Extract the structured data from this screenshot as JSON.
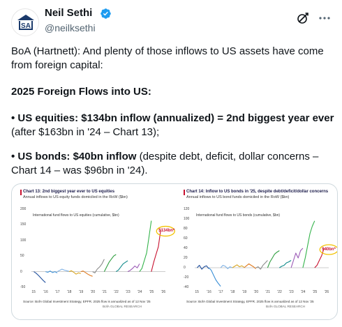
{
  "author": {
    "name": "Neil Sethi",
    "handle": "@neilksethi",
    "avatar_initials": "SA"
  },
  "icons": {
    "verified": "verified-badge-icon",
    "grok": "grok-icon",
    "more": "more-options-icon"
  },
  "colors": {
    "verified": "#1d9bf0",
    "text": "#0f1419",
    "secondary": "#536471",
    "chart_title": "#1b1b4a",
    "callout_circle": "#f2c200",
    "callout_text": "#c8102e"
  },
  "tweet": {
    "line1": "BoA (Hartnett): And plenty of those inflows to US assets have come from foreign capital:",
    "heading": "2025 Foreign Flows into US:",
    "equities_bold": "• US equities: $134bn inflow (annualized) = 2nd biggest year ever",
    "equities_rest": "(after $163bn in '24  – Chart 13);",
    "bonds_bold": "• US bonds: $40bn inflow",
    "bonds_rest": " (despite debt, deficit, dollar concerns – Chart 14 – was  $96bn in '24)."
  },
  "chart_data": [
    {
      "type": "line",
      "title": "Chart 13: 2nd biggest year ever to US equities",
      "subtitle": "Annual inflows to US equity funds domiciled in the RoW ($bn)",
      "inner_title": "International fund flows to US equities (cumulative, $bn)",
      "callout": "$134bn*",
      "source": "Source: BofA Global Investment Strategy, EPFR. 2025 flow is annualized as of 12 Nov '25",
      "brand": "BofA GLOBAL RESEARCH",
      "ylim": [
        -50,
        200
      ],
      "y_ticks": [
        "200",
        "150",
        "100",
        "50",
        "0",
        "-50"
      ],
      "x_ticks": [
        "15",
        "'16",
        "'17",
        "'18",
        "'19",
        "'20",
        "'21",
        "'22",
        "'23",
        "'24",
        "'25",
        "'26"
      ],
      "series": [
        {
          "color": "#1f4e9c",
          "x": [
            2015.0,
            2015.2,
            2015.4,
            2015.6,
            2015.8,
            2016.0
          ],
          "y": [
            0,
            -5,
            -12,
            -20,
            -28,
            -35
          ]
        },
        {
          "color": "#3a8fd6",
          "x": [
            2016.0,
            2016.2,
            2016.4,
            2016.6,
            2016.8,
            2017.0
          ],
          "y": [
            0,
            -2,
            2,
            -3,
            0,
            -4
          ]
        },
        {
          "color": "#7fb2e5",
          "x": [
            2017.0,
            2017.2,
            2017.4,
            2017.6,
            2017.8,
            2018.0
          ],
          "y": [
            0,
            4,
            8,
            5,
            3,
            1
          ]
        },
        {
          "color": "#d9a520",
          "x": [
            2018.0,
            2018.2,
            2018.4,
            2018.6,
            2018.8,
            2019.0
          ],
          "y": [
            0,
            3,
            -2,
            -8,
            -4,
            -6
          ]
        },
        {
          "color": "#e07a1e",
          "x": [
            2019.0,
            2019.2,
            2019.4,
            2019.6,
            2019.8,
            2020.0
          ],
          "y": [
            0,
            2,
            -3,
            -8,
            -12,
            -15
          ]
        },
        {
          "color": "#8a8a8a",
          "x": [
            2020.0,
            2020.2,
            2020.4,
            2020.6,
            2020.8,
            2021.0
          ],
          "y": [
            0,
            -4,
            8,
            15,
            25,
            40
          ]
        },
        {
          "color": "#2e9e3e",
          "x": [
            2021.0,
            2021.2,
            2021.4,
            2021.6,
            2021.8,
            2022.0
          ],
          "y": [
            0,
            15,
            30,
            40,
            50,
            55
          ]
        },
        {
          "color": "#0f8a8a",
          "x": [
            2022.0,
            2022.2,
            2022.4,
            2022.6,
            2022.8,
            2023.0
          ],
          "y": [
            0,
            5,
            15,
            25,
            30,
            35
          ]
        },
        {
          "color": "#9b59b6",
          "x": [
            2023.0,
            2023.2,
            2023.4,
            2023.6,
            2023.8,
            2024.0
          ],
          "y": [
            0,
            4,
            10,
            18,
            12,
            25
          ]
        },
        {
          "color": "#33b34a",
          "x": [
            2024.0,
            2024.2,
            2024.4,
            2024.6,
            2024.8,
            2025.0
          ],
          "y": [
            0,
            10,
            35,
            60,
            110,
            163
          ]
        },
        {
          "color": "#c8102e",
          "x": [
            2025.0,
            2025.2,
            2025.4,
            2025.6,
            2025.8
          ],
          "y": [
            0,
            30,
            55,
            80,
            134
          ]
        }
      ]
    },
    {
      "type": "line",
      "title": "Chart 14: Inflow to US bonds in '25, despite debt/deficit/dollar concerns",
      "subtitle": "Annual inflows to US bond funds domiciled in the RoW ($bn)",
      "inner_title": "International fund flows to US bonds (cumulative, $bn)",
      "callout": "$40bn*",
      "source": "Source: BofA Global Investment Strategy, EPFR. 2025 flow is annualized as of 12 Nov '25",
      "brand": "BofA GLOBAL RESEARCH",
      "ylim": [
        -40,
        120
      ],
      "y_ticks": [
        "120",
        "100",
        "80",
        "60",
        "40",
        "20",
        "0",
        "-20",
        "-40"
      ],
      "x_ticks": [
        "15",
        "'16",
        "'17",
        "'18",
        "'19",
        "'20",
        "'21",
        "'22",
        "'23",
        "'24",
        "'25",
        "'26"
      ],
      "series": [
        {
          "color": "#1f4e9c",
          "x": [
            2015.0,
            2015.2,
            2015.4,
            2015.6,
            2015.8,
            2016.0
          ],
          "y": [
            0,
            5,
            -3,
            2,
            4,
            -2
          ]
        },
        {
          "color": "#3a8fd6",
          "x": [
            2016.0,
            2016.2,
            2016.4,
            2016.6,
            2016.8,
            2017.0
          ],
          "y": [
            0,
            -5,
            -15,
            -25,
            -32,
            -38
          ]
        },
        {
          "color": "#7fb2e5",
          "x": [
            2017.0,
            2017.2,
            2017.4,
            2017.6,
            2017.8,
            2018.0
          ],
          "y": [
            0,
            5,
            3,
            -2,
            2,
            0
          ]
        },
        {
          "color": "#d9a520",
          "x": [
            2018.0,
            2018.2,
            2018.4,
            2018.6,
            2018.8,
            2019.0
          ],
          "y": [
            0,
            3,
            6,
            2,
            4,
            1
          ]
        },
        {
          "color": "#e07a1e",
          "x": [
            2019.0,
            2019.2,
            2019.4,
            2019.6,
            2019.8,
            2020.0
          ],
          "y": [
            0,
            4,
            8,
            5,
            2,
            -2
          ]
        },
        {
          "color": "#8a8a8a",
          "x": [
            2020.0,
            2020.2,
            2020.4,
            2020.6,
            2020.8,
            2021.0
          ],
          "y": [
            0,
            2,
            -3,
            5,
            10,
            15
          ]
        },
        {
          "color": "#2e9e3e",
          "x": [
            2021.0,
            2021.2,
            2021.4,
            2021.6,
            2021.8,
            2022.0
          ],
          "y": [
            0,
            12,
            20,
            28,
            32,
            35
          ]
        },
        {
          "color": "#0f8a8a",
          "x": [
            2022.0,
            2022.2,
            2022.4,
            2022.6,
            2022.8,
            2023.0
          ],
          "y": [
            0,
            3,
            5,
            10,
            12,
            15
          ]
        },
        {
          "color": "#9b59b6",
          "x": [
            2023.0,
            2023.2,
            2023.4,
            2023.6,
            2023.8,
            2024.0
          ],
          "y": [
            0,
            15,
            30,
            20,
            35,
            40
          ]
        },
        {
          "color": "#33b34a",
          "x": [
            2024.0,
            2024.2,
            2024.4,
            2024.6,
            2024.8,
            2025.0
          ],
          "y": [
            0,
            20,
            45,
            70,
            85,
            96
          ]
        },
        {
          "color": "#c8102e",
          "x": [
            2025.0,
            2025.2,
            2025.4,
            2025.6,
            2025.8
          ],
          "y": [
            0,
            5,
            15,
            25,
            40
          ]
        }
      ]
    }
  ]
}
